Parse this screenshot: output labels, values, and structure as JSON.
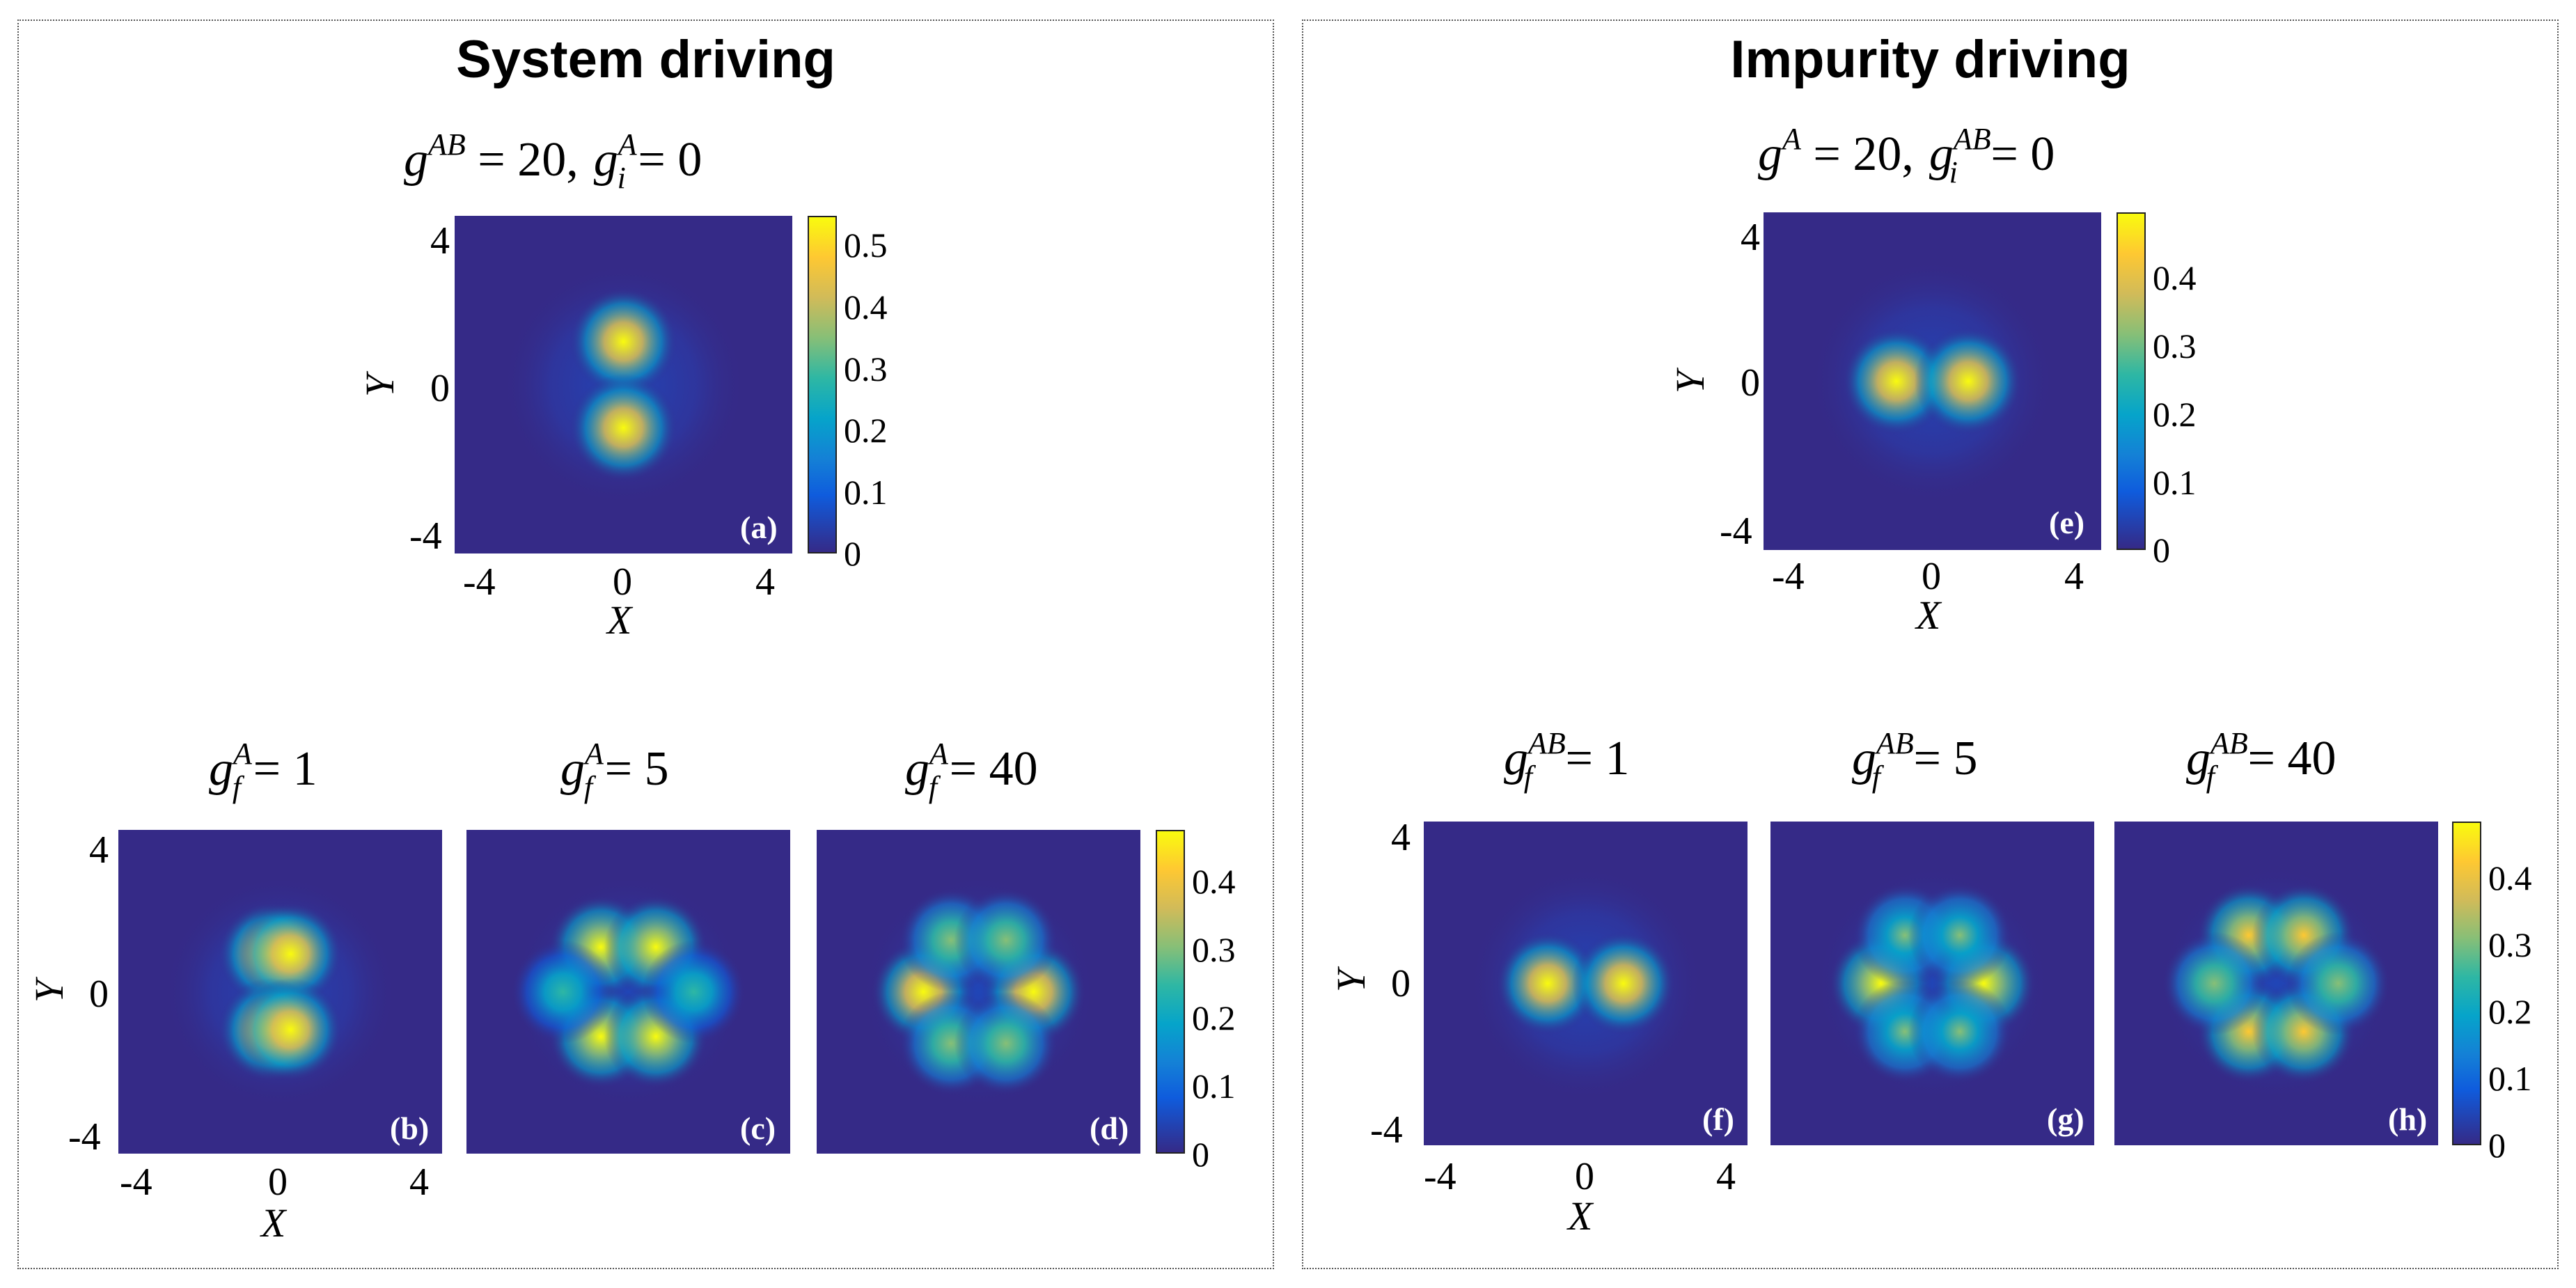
{
  "sections": {
    "left_title": "System driving",
    "right_title": "Impurity driving"
  },
  "axes": {
    "xlabel": "X",
    "ylabel": "Y",
    "ticks": [
      "-4",
      "0",
      "4"
    ]
  },
  "titles": {
    "a": {
      "g1": "g",
      "s1": "AB",
      "v1": " = 20,",
      "g2": "g",
      "sup2": "A",
      "sub2": "i",
      "v2": " = 0"
    },
    "b": {
      "g": "g",
      "sup": "A",
      "sub": "f",
      "v": " = 1"
    },
    "c": {
      "g": "g",
      "sup": "A",
      "sub": "f",
      "v": " = 5"
    },
    "d": {
      "g": "g",
      "sup": "A",
      "sub": "f",
      "v": " = 40"
    },
    "e": {
      "g1": "g",
      "s1": "A",
      "v1": " = 20,",
      "g2": "g",
      "sup2": "AB",
      "sub2": "i",
      "v2": " = 0"
    },
    "f": {
      "g": "g",
      "sup": "AB",
      "sub": "f",
      "v": " = 1"
    },
    "g": {
      "g": "g",
      "sup": "AB",
      "sub": "f",
      "v": " = 5"
    },
    "h": {
      "g": "g",
      "sup": "AB",
      "sub": "f",
      "v": " = 40"
    }
  },
  "panel_labels": {
    "a": "(a)",
    "b": "(b)",
    "c": "(c)",
    "d": "(d)",
    "e": "(e)",
    "f": "(f)",
    "g": "(g)",
    "h": "(h)"
  },
  "colorbars": {
    "a": [
      "0",
      "0.1",
      "0.2",
      "0.3",
      "0.4",
      "0.5"
    ],
    "d": [
      "0",
      "0.1",
      "0.2",
      "0.3",
      "0.4"
    ],
    "e": [
      "0",
      "0.1",
      "0.2",
      "0.3",
      "0.4"
    ],
    "h": [
      "0",
      "0.1",
      "0.2",
      "0.3",
      "0.4"
    ]
  },
  "chart_data": [
    {
      "type": "heatmap",
      "panel": "a",
      "title": "g^AB = 20, g_i^A = 0",
      "xlabel": "X",
      "ylabel": "Y",
      "xlim": [
        -4.7,
        4.7
      ],
      "ylim": [
        -4.7,
        4.7
      ],
      "clim": [
        0,
        0.55
      ],
      "pattern": "two lobes along Y",
      "peaks": [
        {
          "x": 0,
          "y": 1.2,
          "value": 0.53
        },
        {
          "x": 0,
          "y": -1.2,
          "value": 0.53
        }
      ],
      "colormap": "parula"
    },
    {
      "type": "heatmap",
      "panel": "b",
      "title": "g_f^A = 1",
      "xlim": [
        -4.7,
        4.7
      ],
      "ylim": [
        -4.7,
        4.7
      ],
      "clim": [
        0,
        0.47
      ],
      "pattern": "two split lobes along Y",
      "peaks": [
        {
          "x": -0.3,
          "y": 1.1,
          "value": 0.46
        },
        {
          "x": 0.3,
          "y": 1.1,
          "value": 0.46
        },
        {
          "x": -0.3,
          "y": -1.1,
          "value": 0.46
        },
        {
          "x": 0.3,
          "y": -1.1,
          "value": 0.46
        }
      ],
      "colormap": "parula"
    },
    {
      "type": "heatmap",
      "panel": "c",
      "title": "g_f^A = 5",
      "xlim": [
        -4.7,
        4.7
      ],
      "ylim": [
        -4.7,
        4.7
      ],
      "clim": [
        0,
        0.47
      ],
      "pattern": "six lobes",
      "peaks": [
        {
          "x": -0.8,
          "y": 1.3,
          "value": 0.42
        },
        {
          "x": 0.8,
          "y": 1.3,
          "value": 0.42
        },
        {
          "x": -0.8,
          "y": -1.3,
          "value": 0.42
        },
        {
          "x": 0.8,
          "y": -1.3,
          "value": 0.42
        },
        {
          "x": -1.9,
          "y": 0,
          "value": 0.22
        },
        {
          "x": 1.9,
          "y": 0,
          "value": 0.22
        }
      ],
      "colormap": "parula"
    },
    {
      "type": "heatmap",
      "panel": "d",
      "title": "g_f^A = 40",
      "xlim": [
        -4.7,
        4.7
      ],
      "ylim": [
        -4.7,
        4.7
      ],
      "clim": [
        0,
        0.47
      ],
      "pattern": "six lobes",
      "peaks": [
        {
          "x": -1.6,
          "y": 0,
          "value": 0.44
        },
        {
          "x": 1.6,
          "y": 0,
          "value": 0.44
        },
        {
          "x": -0.8,
          "y": 1.5,
          "value": 0.3
        },
        {
          "x": 0.8,
          "y": 1.5,
          "value": 0.3
        },
        {
          "x": -0.8,
          "y": -1.5,
          "value": 0.3
        },
        {
          "x": 0.8,
          "y": -1.5,
          "value": 0.3
        }
      ],
      "colormap": "parula"
    },
    {
      "type": "heatmap",
      "panel": "e",
      "title": "g^A = 20, g_i^AB = 0",
      "xlabel": "X",
      "ylabel": "Y",
      "xlim": [
        -4.7,
        4.7
      ],
      "ylim": [
        -4.7,
        4.7
      ],
      "clim": [
        0,
        0.48
      ],
      "pattern": "two lobes along X",
      "peaks": [
        {
          "x": -1.0,
          "y": 0,
          "value": 0.47
        },
        {
          "x": 1.0,
          "y": 0,
          "value": 0.47
        }
      ],
      "colormap": "parula"
    },
    {
      "type": "heatmap",
      "panel": "f",
      "title": "g_f^AB = 1",
      "xlim": [
        -4.7,
        4.7
      ],
      "ylim": [
        -4.7,
        4.7
      ],
      "clim": [
        0,
        0.48
      ],
      "pattern": "two lobes along X with weak side lobes",
      "peaks": [
        {
          "x": -1.1,
          "y": 0,
          "value": 0.45
        },
        {
          "x": 1.1,
          "y": 0,
          "value": 0.45
        }
      ],
      "colormap": "parula"
    },
    {
      "type": "heatmap",
      "panel": "g",
      "title": "g_f^AB = 5",
      "xlim": [
        -4.7,
        4.7
      ],
      "ylim": [
        -4.7,
        4.7
      ],
      "clim": [
        0,
        0.48
      ],
      "pattern": "six lobes",
      "peaks": [
        {
          "x": -1.5,
          "y": 0,
          "value": 0.43
        },
        {
          "x": 1.5,
          "y": 0,
          "value": 0.43
        },
        {
          "x": -0.8,
          "y": 1.4,
          "value": 0.27
        },
        {
          "x": 0.8,
          "y": 1.4,
          "value": 0.27
        },
        {
          "x": -0.8,
          "y": -1.4,
          "value": 0.27
        },
        {
          "x": 0.8,
          "y": -1.4,
          "value": 0.27
        }
      ],
      "colormap": "parula"
    },
    {
      "type": "heatmap",
      "panel": "h",
      "title": "g_f^AB = 40",
      "xlim": [
        -4.7,
        4.7
      ],
      "ylim": [
        -4.7,
        4.7
      ],
      "clim": [
        0,
        0.48
      ],
      "pattern": "six lobes",
      "peaks": [
        {
          "x": -0.8,
          "y": 1.4,
          "value": 0.42
        },
        {
          "x": 0.8,
          "y": 1.4,
          "value": 0.42
        },
        {
          "x": -0.8,
          "y": -1.4,
          "value": 0.42
        },
        {
          "x": 0.8,
          "y": -1.4,
          "value": 0.42
        },
        {
          "x": -1.8,
          "y": 0,
          "value": 0.28
        },
        {
          "x": 1.8,
          "y": 0,
          "value": 0.28
        }
      ],
      "colormap": "parula"
    }
  ]
}
